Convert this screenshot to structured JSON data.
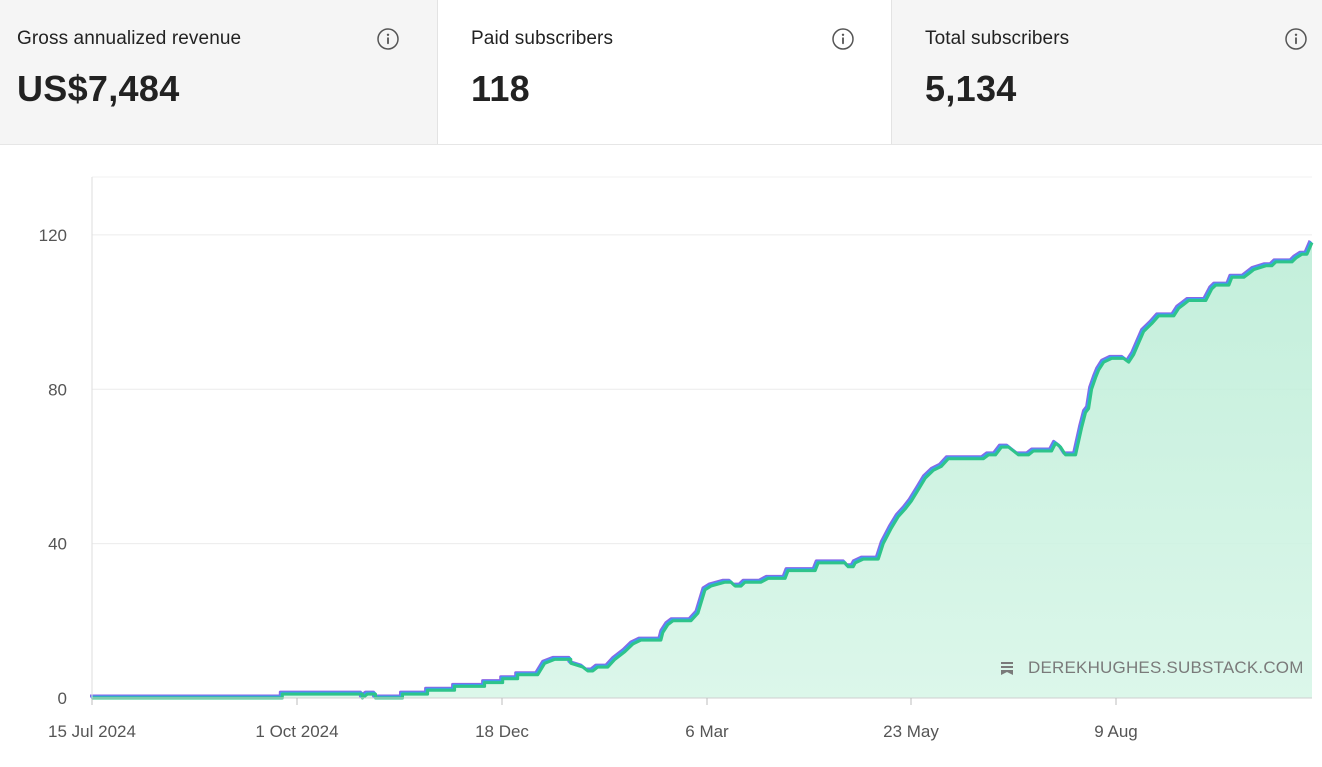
{
  "stats": [
    {
      "label": "Gross annualized revenue",
      "value": "US$7,484"
    },
    {
      "label": "Paid subscribers",
      "value": "118"
    },
    {
      "label": "Total subscribers",
      "value": "5,134"
    }
  ],
  "watermark": "DEREKHUGHES.SUBSTACK.COM",
  "colors": {
    "green": "#2ec48a",
    "purple": "#8a66e6",
    "blue": "#3aa0f0",
    "fill": "#c8f0de"
  },
  "chart_data": {
    "type": "area",
    "ylim": [
      0,
      135
    ],
    "y_ticks": [
      0,
      40,
      80,
      120
    ],
    "y_tick_labels": [
      "0",
      "40",
      "80",
      "120"
    ],
    "x_tick_labels": [
      "15 Jul 2024",
      "1 Oct 2024",
      "18 Dec",
      "6 Mar",
      "23 May",
      "9 Aug"
    ],
    "grid": "horizontal",
    "series": [
      {
        "values": [
          [
            0,
            0
          ],
          [
            190,
            0
          ],
          [
            190,
            1
          ],
          [
            270,
            1
          ],
          [
            270,
            0
          ],
          [
            275,
            1
          ],
          [
            283,
            1
          ],
          [
            283,
            0
          ],
          [
            310,
            0
          ],
          [
            310,
            1
          ],
          [
            335,
            1
          ],
          [
            335,
            2
          ],
          [
            362,
            2
          ],
          [
            362,
            3
          ],
          [
            392,
            3
          ],
          [
            392,
            4
          ],
          [
            410,
            4
          ],
          [
            410,
            5
          ],
          [
            425,
            5
          ],
          [
            425,
            6
          ],
          [
            445,
            6
          ],
          [
            452,
            9
          ],
          [
            462,
            10
          ],
          [
            478,
            10
          ],
          [
            478,
            9
          ],
          [
            490,
            8
          ],
          [
            495,
            7
          ],
          [
            500,
            7
          ],
          [
            505,
            8
          ],
          [
            515,
            8
          ],
          [
            522,
            10
          ],
          [
            532,
            12
          ],
          [
            540,
            14
          ],
          [
            548,
            15
          ],
          [
            568,
            15
          ],
          [
            570,
            17
          ],
          [
            575,
            19
          ],
          [
            580,
            20
          ],
          [
            598,
            20
          ],
          [
            605,
            22
          ],
          [
            612,
            28
          ],
          [
            618,
            29
          ],
          [
            632,
            30
          ],
          [
            638,
            30
          ],
          [
            642,
            29
          ],
          [
            648,
            29
          ],
          [
            652,
            30
          ],
          [
            668,
            30
          ],
          [
            675,
            31
          ],
          [
            692,
            31
          ],
          [
            695,
            33
          ],
          [
            722,
            33
          ],
          [
            725,
            35
          ],
          [
            752,
            35
          ],
          [
            755,
            34
          ],
          [
            760,
            34
          ],
          [
            762,
            35
          ],
          [
            770,
            36
          ],
          [
            785,
            36
          ],
          [
            790,
            40
          ],
          [
            798,
            44
          ],
          [
            805,
            47
          ],
          [
            812,
            49
          ],
          [
            818,
            51
          ],
          [
            825,
            54
          ],
          [
            832,
            57
          ],
          [
            840,
            59
          ],
          [
            848,
            60
          ],
          [
            855,
            62
          ],
          [
            890,
            62
          ],
          [
            895,
            63
          ],
          [
            902,
            63
          ],
          [
            908,
            65
          ],
          [
            915,
            65
          ],
          [
            920,
            64
          ],
          [
            925,
            63
          ],
          [
            935,
            63
          ],
          [
            940,
            64
          ],
          [
            958,
            64
          ],
          [
            962,
            66
          ],
          [
            967,
            65
          ],
          [
            972,
            63
          ],
          [
            982,
            63
          ],
          [
            988,
            70
          ],
          [
            992,
            74
          ],
          [
            995,
            75
          ],
          [
            998,
            80
          ],
          [
            1002,
            83
          ],
          [
            1005,
            85
          ],
          [
            1010,
            87
          ],
          [
            1018,
            88
          ],
          [
            1030,
            88
          ],
          [
            1035,
            87
          ],
          [
            1040,
            89
          ],
          [
            1045,
            92
          ],
          [
            1050,
            95
          ],
          [
            1058,
            97
          ],
          [
            1065,
            99
          ],
          [
            1080,
            99
          ],
          [
            1085,
            101
          ],
          [
            1090,
            102
          ],
          [
            1095,
            103
          ],
          [
            1112,
            103
          ],
          [
            1118,
            106
          ],
          [
            1122,
            107
          ],
          [
            1135,
            107
          ],
          [
            1138,
            109
          ],
          [
            1150,
            109
          ],
          [
            1155,
            110
          ],
          [
            1160,
            111
          ],
          [
            1172,
            112
          ],
          [
            1178,
            112
          ],
          [
            1182,
            113
          ],
          [
            1198,
            113
          ],
          [
            1202,
            114
          ],
          [
            1208,
            115
          ],
          [
            1213,
            115
          ],
          [
            1218,
            118
          ]
        ]
      }
    ]
  }
}
